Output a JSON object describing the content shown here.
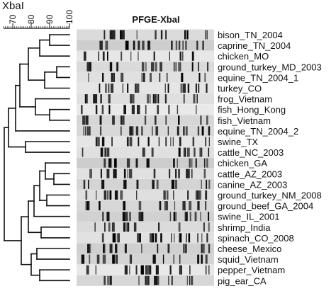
{
  "header": {
    "enzyme_label": "XbaI",
    "gel_title": "PFGE-XbaI"
  },
  "scale": {
    "ticks": [
      "70",
      "80",
      "90",
      "100"
    ]
  },
  "strains": [
    "bison_TN_2004",
    "caprine_TN_2004",
    "chicken_MO",
    "ground_turkey_MD_2003",
    "equine_TN_2004_1",
    "turkey_CO",
    "frog_Vietnam",
    "fish_Hong_Kong",
    "fish_Vietnam",
    "equine_TN_2004_2",
    "swine_TX",
    "cattle_NC_2003",
    "chicken_GA",
    "cattle_AZ_2003",
    "canine_AZ_2003",
    "ground_turkey_NM_2008",
    "ground_beef_GA_2004",
    "swine_IL_2001",
    "shrimp_India",
    "spinach_CO_2008",
    "cheese_Mexico",
    "squid_Vietnam",
    "pepper_Vietnam",
    "pig_ear_CA"
  ]
}
